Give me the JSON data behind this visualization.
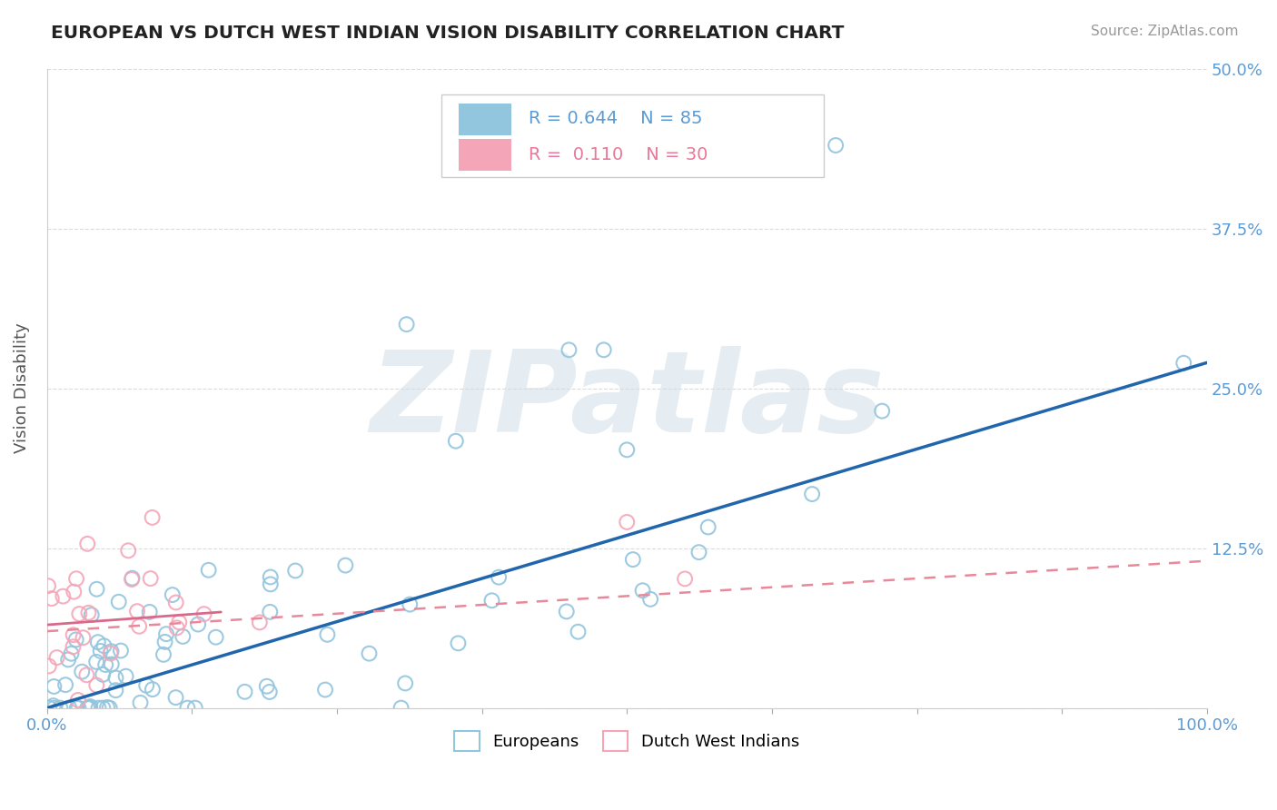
{
  "title": "EUROPEAN VS DUTCH WEST INDIAN VISION DISABILITY CORRELATION CHART",
  "source": "Source: ZipAtlas.com",
  "ylabel": "Vision Disability",
  "xlim": [
    0,
    1.0
  ],
  "ylim": [
    0,
    0.5
  ],
  "ytick_labels": [
    "",
    "12.5%",
    "25.0%",
    "37.5%",
    "50.0%"
  ],
  "xtick_labels_show": [
    "0.0%",
    "100.0%"
  ],
  "blue_color": "#92c5de",
  "pink_color": "#f4a6b8",
  "blue_line_color": "#2166ac",
  "pink_line_color": "#e8889a",
  "tick_color": "#5b9bd5",
  "watermark": "ZIPatlas",
  "background_color": "#ffffff",
  "grid_color": "#cccccc",
  "legend_r1": "R = 0.644",
  "legend_n1": "N = 85",
  "legend_r2": "R =  0.110",
  "legend_n2": "N = 30",
  "blue_trend_x0": 0.0,
  "blue_trend_y0": 0.0,
  "blue_trend_x1": 1.0,
  "blue_trend_y1": 0.27,
  "pink_trend_x0": 0.0,
  "pink_trend_y0": 0.06,
  "pink_trend_x1": 1.0,
  "pink_trend_y1": 0.115
}
